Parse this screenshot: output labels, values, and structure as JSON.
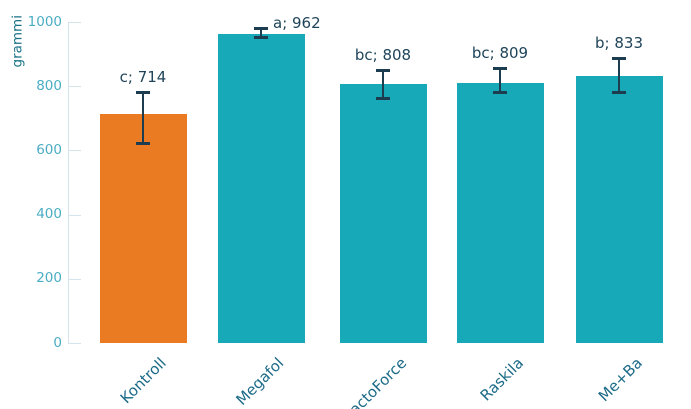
{
  "chart_data": {
    "type": "bar",
    "title": "",
    "xlabel": "",
    "ylabel": "grammi",
    "categories": [
      "Kontroll",
      "Megafol",
      "LactoForce",
      "Raskila",
      "Me+Ba"
    ],
    "values": [
      714,
      962,
      808,
      809,
      833
    ],
    "data_labels": [
      "c; 714",
      "a; 962",
      "bc; 808",
      "bc; 809",
      "b; 833"
    ],
    "error_low": [
      620,
      950,
      760,
      779,
      779
    ],
    "error_high": [
      782,
      981,
      850,
      857,
      888
    ],
    "bar_colors": [
      "#EA7B22",
      "#18A9B8",
      "#18A9B8",
      "#18A9B8",
      "#18A9B8"
    ],
    "ylim": [
      0,
      1000
    ],
    "yticks": [
      0,
      200,
      400,
      600,
      800,
      1000
    ],
    "grid": false,
    "legend": "none",
    "x_labels_rotation_deg": 45
  },
  "colors": {
    "background": "#ffffff",
    "bar_accent_orange": "#EA7B22",
    "bar_teal": "#18A9B8",
    "error_bar": "#1C3D4F",
    "data_label": "#1F4459",
    "ytick_label": "#4BADC4",
    "category_label": "#1B6A87",
    "axis_line": "#D5E4EA",
    "y_title": "#1A7286"
  }
}
